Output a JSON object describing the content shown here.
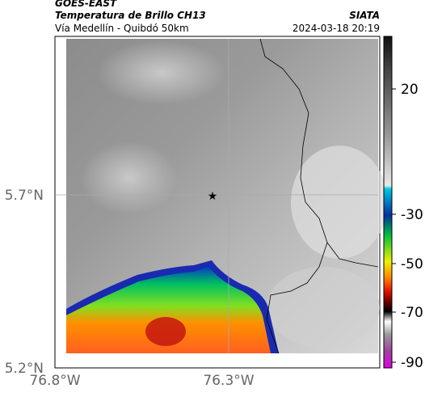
{
  "header": {
    "title": "GOES-EAST",
    "subtitle": "Temperatura de Brillo CH13",
    "caption": "Vía Medellín - Quibdó 50km",
    "source": "SIATA",
    "timestamp": "2024-03-18 20:19"
  },
  "axes": {
    "x_labels": [
      "76.8°W",
      "76.3°W"
    ],
    "y_labels": [
      "5.7°N",
      "5.2°N"
    ]
  },
  "colorbar": {
    "labels": [
      "20",
      "-30",
      "-50",
      "-70",
      "-90"
    ]
  }
}
